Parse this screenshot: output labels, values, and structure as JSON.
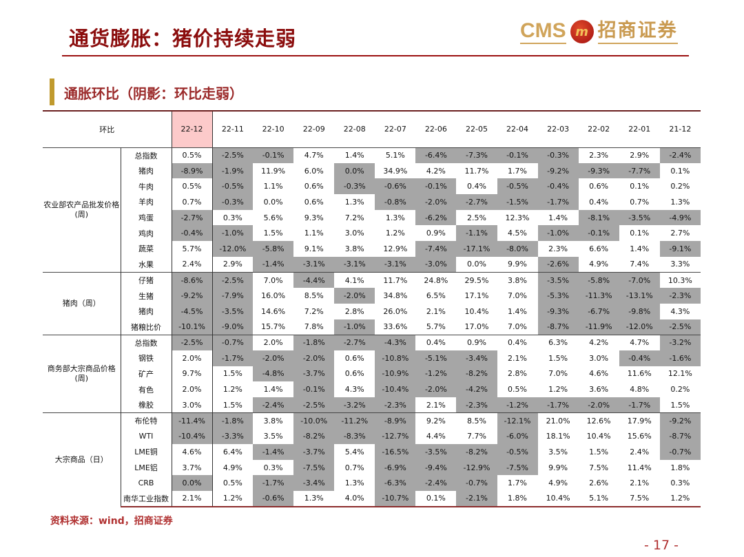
{
  "title": "通货膨胀：猪价持续走弱",
  "logo": {
    "latin": "CMS",
    "chinese": "招商证券",
    "emblem": "m"
  },
  "subtitle": "通胀环比（阴影：环比走弱）",
  "table": {
    "corner": "环比",
    "columns": [
      "22-12",
      "22-11",
      "22-10",
      "22-09",
      "22-08",
      "22-07",
      "22-06",
      "22-05",
      "22-04",
      "22-03",
      "22-02",
      "22-01",
      "21-12"
    ],
    "shade_color": "#a6a6a6",
    "groups": [
      {
        "name": "农业部农产品批发价格\n(周)",
        "rows": [
          {
            "label": "总指数",
            "values": [
              "0.5%",
              "-2.5%",
              "-0.1%",
              "4.7%",
              "1.4%",
              "5.1%",
              "-6.4%",
              "-7.3%",
              "-0.1%",
              "-0.3%",
              "2.3%",
              "2.9%",
              "-2.4%"
            ]
          },
          {
            "label": "猪肉",
            "values": [
              "-8.9%",
              "-1.9%",
              "11.9%",
              "6.0%",
              "0.0%",
              "34.9%",
              "4.2%",
              "11.7%",
              "1.7%",
              "-9.2%",
              "-9.3%",
              "-7.7%",
              "0.1%"
            ],
            "extra_shaded": [
              4
            ]
          },
          {
            "label": "牛肉",
            "values": [
              "0.5%",
              "-0.5%",
              "1.1%",
              "0.6%",
              "-0.3%",
              "-0.6%",
              "-0.1%",
              "0.4%",
              "-0.5%",
              "-0.4%",
              "0.6%",
              "0.1%",
              "0.2%"
            ]
          },
          {
            "label": "羊肉",
            "values": [
              "0.7%",
              "-0.3%",
              "0.0%",
              "0.6%",
              "1.3%",
              "-0.8%",
              "-2.0%",
              "-2.7%",
              "-1.5%",
              "-1.7%",
              "0.4%",
              "0.7%",
              "1.3%"
            ]
          },
          {
            "label": "鸡蛋",
            "values": [
              "-2.7%",
              "0.3%",
              "5.6%",
              "9.3%",
              "7.2%",
              "1.3%",
              "-6.2%",
              "2.5%",
              "12.3%",
              "1.4%",
              "-8.1%",
              "-3.5%",
              "-4.9%"
            ]
          },
          {
            "label": "鸡肉",
            "values": [
              "-0.4%",
              "-1.0%",
              "1.5%",
              "1.1%",
              "3.0%",
              "1.2%",
              "0.9%",
              "-1.1%",
              "4.5%",
              "-1.0%",
              "-0.1%",
              "0.1%",
              "2.7%"
            ]
          },
          {
            "label": "蔬菜",
            "values": [
              "5.7%",
              "-12.0%",
              "-5.8%",
              "9.1%",
              "3.8%",
              "12.9%",
              "-7.4%",
              "-17.1%",
              "-8.0%",
              "2.3%",
              "6.6%",
              "1.4%",
              "-9.1%"
            ]
          },
          {
            "label": "水果",
            "values": [
              "2.4%",
              "2.9%",
              "-1.4%",
              "-3.1%",
              "-3.1%",
              "-3.1%",
              "-3.0%",
              "0.0%",
              "9.9%",
              "-2.6%",
              "4.9%",
              "7.4%",
              "3.3%"
            ]
          }
        ]
      },
      {
        "name": "猪肉（周）",
        "rows": [
          {
            "label": "仔猪",
            "values": [
              "-8.6%",
              "-2.5%",
              "7.0%",
              "-4.4%",
              "4.1%",
              "11.7%",
              "24.8%",
              "29.5%",
              "3.8%",
              "-3.5%",
              "-5.8%",
              "-7.0%",
              "10.3%"
            ]
          },
          {
            "label": "生猪",
            "values": [
              "-9.2%",
              "-7.9%",
              "16.0%",
              "8.5%",
              "-2.0%",
              "34.8%",
              "6.5%",
              "17.1%",
              "7.0%",
              "-5.3%",
              "-11.3%",
              "-13.1%",
              "-2.3%"
            ]
          },
          {
            "label": "猪肉",
            "values": [
              "-4.5%",
              "-3.5%",
              "14.6%",
              "7.2%",
              "2.8%",
              "26.0%",
              "2.1%",
              "10.4%",
              "1.4%",
              "-9.3%",
              "-6.7%",
              "-9.8%",
              "4.3%"
            ]
          },
          {
            "label": "猪粮比价",
            "values": [
              "-10.1%",
              "-9.0%",
              "15.7%",
              "7.8%",
              "-1.0%",
              "33.6%",
              "5.7%",
              "17.0%",
              "7.0%",
              "-8.7%",
              "-11.9%",
              "-12.0%",
              "-2.5%"
            ]
          }
        ]
      },
      {
        "name": "商务部大宗商品价格\n(周)",
        "rows": [
          {
            "label": "总指数",
            "values": [
              "-2.5%",
              "-0.7%",
              "2.0%",
              "-1.8%",
              "-2.7%",
              "-4.3%",
              "0.4%",
              "0.9%",
              "0.4%",
              "6.3%",
              "4.2%",
              "4.7%",
              "-3.2%"
            ]
          },
          {
            "label": "钢铁",
            "values": [
              "2.0%",
              "-1.7%",
              "-2.0%",
              "-2.0%",
              "0.6%",
              "-10.8%",
              "-5.1%",
              "-3.4%",
              "2.1%",
              "1.5%",
              "3.0%",
              "-0.4%",
              "-1.6%"
            ]
          },
          {
            "label": "矿产",
            "values": [
              "9.7%",
              "1.5%",
              "-4.8%",
              "-3.7%",
              "0.6%",
              "-10.9%",
              "-1.2%",
              "-8.2%",
              "2.8%",
              "7.0%",
              "4.6%",
              "11.6%",
              "12.1%"
            ]
          },
          {
            "label": "有色",
            "values": [
              "2.0%",
              "1.2%",
              "1.4%",
              "-0.1%",
              "4.3%",
              "-10.4%",
              "-2.0%",
              "-4.2%",
              "0.5%",
              "1.2%",
              "3.6%",
              "4.8%",
              "0.2%"
            ]
          },
          {
            "label": "橡胶",
            "values": [
              "3.0%",
              "1.5%",
              "-2.4%",
              "-2.5%",
              "-3.2%",
              "-2.3%",
              "2.1%",
              "-2.3%",
              "-1.2%",
              "-1.7%",
              "-2.0%",
              "-1.7%",
              "1.5%"
            ]
          }
        ]
      },
      {
        "name": "大宗商品（日）",
        "rows": [
          {
            "label": "布伦特",
            "values": [
              "-11.4%",
              "-1.8%",
              "3.8%",
              "-10.0%",
              "-11.2%",
              "-8.9%",
              "9.2%",
              "8.5%",
              "-12.1%",
              "21.0%",
              "12.6%",
              "17.9%",
              "-9.2%"
            ]
          },
          {
            "label": "WTI",
            "values": [
              "-10.4%",
              "-3.3%",
              "3.5%",
              "-8.2%",
              "-8.3%",
              "-12.7%",
              "4.4%",
              "7.7%",
              "-6.0%",
              "18.1%",
              "10.4%",
              "15.6%",
              "-8.7%"
            ]
          },
          {
            "label": "LME铜",
            "values": [
              "4.6%",
              "6.4%",
              "-1.4%",
              "-3.7%",
              "5.4%",
              "-16.5%",
              "-3.5%",
              "-8.2%",
              "-0.5%",
              "3.5%",
              "1.5%",
              "2.4%",
              "-0.7%"
            ]
          },
          {
            "label": "LME铝",
            "values": [
              "3.7%",
              "4.9%",
              "0.3%",
              "-7.5%",
              "0.7%",
              "-6.9%",
              "-9.4%",
              "-12.9%",
              "-7.5%",
              "9.9%",
              "7.5%",
              "11.4%",
              "1.8%"
            ]
          },
          {
            "label": "CRB",
            "values": [
              "0.0%",
              "0.5%",
              "-1.7%",
              "-3.4%",
              "1.3%",
              "-6.3%",
              "-2.4%",
              "-0.7%",
              "1.7%",
              "4.9%",
              "2.6%",
              "2.1%",
              "0.3%"
            ],
            "extra_shaded": [
              0
            ]
          },
          {
            "label": "南华工业指数",
            "values": [
              "2.1%",
              "1.2%",
              "-0.6%",
              "1.3%",
              "4.0%",
              "-10.7%",
              "0.1%",
              "-2.1%",
              "1.8%",
              "10.4%",
              "5.1%",
              "7.5%",
              "1.2%"
            ]
          }
        ]
      }
    ]
  },
  "source": "资料来源：wind，招商证券",
  "page_number": "- 17 -"
}
